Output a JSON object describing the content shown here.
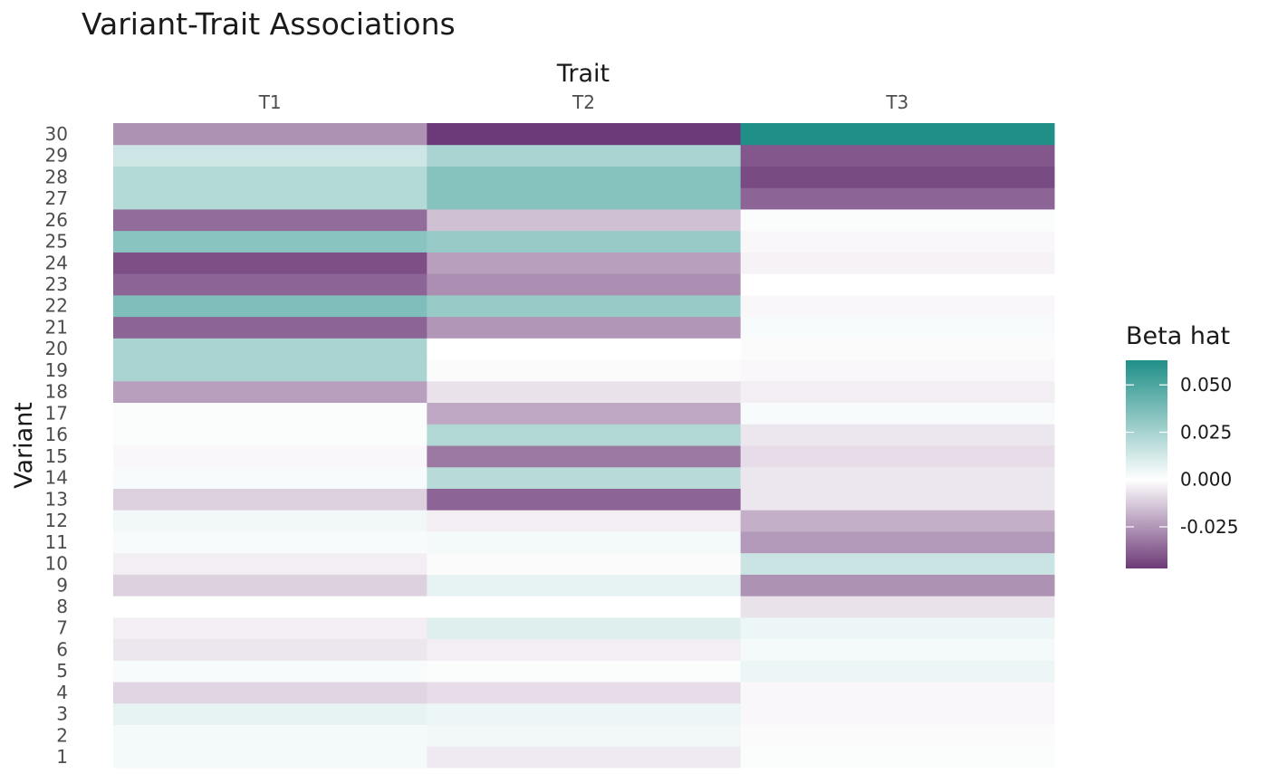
{
  "chart_data": {
    "type": "heatmap",
    "title": "Variant-Trait Associations",
    "xlabel": "Trait",
    "ylabel": "Variant",
    "x_categories": [
      "T1",
      "T2",
      "T3"
    ],
    "y_categories": [
      "1",
      "2",
      "3",
      "4",
      "5",
      "6",
      "7",
      "8",
      "9",
      "10",
      "11",
      "12",
      "13",
      "14",
      "15",
      "16",
      "17",
      "18",
      "19",
      "20",
      "21",
      "22",
      "23",
      "24",
      "25",
      "26",
      "27",
      "28",
      "29",
      "30"
    ],
    "x_axis_position": "top",
    "legend": {
      "title": "Beta hat",
      "placement": "right",
      "ticks": [
        0.05,
        0.025,
        0.0,
        -0.025
      ],
      "tick_labels": [
        "0.050",
        "0.025",
        "0.000",
        "-0.025"
      ],
      "range": [
        -0.047,
        0.063
      ]
    },
    "colors": {
      "low": "#6d3a78",
      "mid": "#ffffff",
      "high": "#1f8f88"
    },
    "grid": false,
    "values": {
      "T1": [
        0.003,
        0.003,
        0.007,
        -0.01,
        0.002,
        -0.006,
        -0.004,
        0.0,
        -0.011,
        -0.004,
        0.002,
        0.004,
        -0.011,
        0.002,
        -0.002,
        0.001,
        0.001,
        -0.023,
        0.024,
        0.024,
        -0.037,
        0.036,
        -0.037,
        -0.042,
        0.033,
        -0.035,
        0.021,
        0.021,
        0.014,
        -0.026
      ],
      "T2": [
        -0.005,
        0.004,
        0.005,
        -0.008,
        0.001,
        -0.004,
        0.009,
        0.0,
        0.007,
        -0.001,
        0.003,
        -0.004,
        -0.037,
        0.02,
        -0.032,
        0.022,
        -0.021,
        -0.007,
        -0.001,
        0.0,
        -0.025,
        0.029,
        -0.027,
        -0.023,
        0.029,
        -0.015,
        0.034,
        0.034,
        0.024,
        -0.047
      ],
      "T3": [
        0.001,
        -0.001,
        -0.002,
        -0.002,
        0.005,
        0.003,
        0.005,
        -0.007,
        -0.026,
        0.015,
        -0.024,
        -0.019,
        -0.006,
        -0.006,
        -0.008,
        -0.006,
        0.002,
        -0.004,
        -0.002,
        -0.001,
        0.002,
        -0.002,
        0.0,
        -0.003,
        -0.002,
        0.001,
        -0.037,
        -0.043,
        -0.04,
        0.063
      ]
    }
  }
}
